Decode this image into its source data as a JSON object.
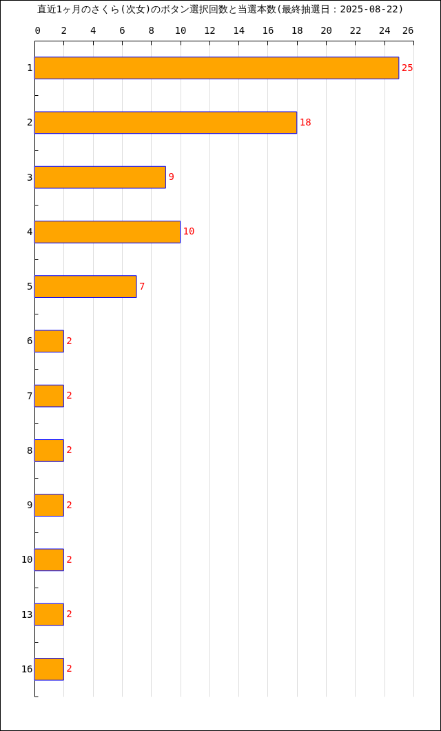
{
  "chart_data": {
    "type": "bar",
    "orientation": "horizontal",
    "title": "直近1ヶ月のさくら(次女)のボタン選択回数と当選本数(最終抽選日：2025-08-22)",
    "categories": [
      "1",
      "2",
      "3",
      "4",
      "5",
      "6",
      "7",
      "8",
      "9",
      "10",
      "13",
      "16"
    ],
    "values": [
      25,
      18,
      9,
      10,
      7,
      2,
      2,
      2,
      2,
      2,
      2,
      2
    ],
    "color": "#ffa500",
    "xlim": [
      0,
      26
    ],
    "xticks": [
      0,
      2,
      4,
      6,
      8,
      10,
      12,
      14,
      16,
      18,
      20,
      22,
      24,
      26
    ],
    "grid": "x",
    "data_labels": true
  }
}
